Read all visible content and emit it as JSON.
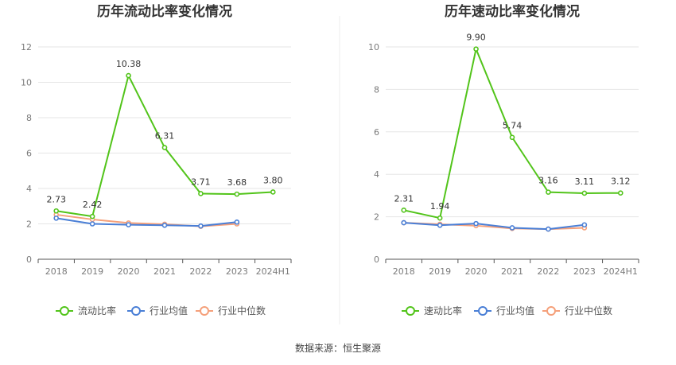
{
  "chart_data": [
    {
      "type": "line",
      "title": "历年流动比率变化情况",
      "categories": [
        "2018",
        "2019",
        "2020",
        "2021",
        "2022",
        "2023",
        "2024H1"
      ],
      "ylim": [
        0,
        12
      ],
      "yticks": [
        0,
        2,
        4,
        6,
        8,
        10,
        12
      ],
      "grid": true,
      "legend_position": "bottom",
      "series": [
        {
          "name": "流动比率",
          "color": "#52c41a",
          "values": [
            2.73,
            2.42,
            10.38,
            6.31,
            3.71,
            3.68,
            3.8
          ],
          "labels": [
            "2.73",
            "2.42",
            "10.38",
            "6.31",
            "3.71",
            "3.68",
            "3.80"
          ]
        },
        {
          "name": "行业均值",
          "color": "#4a7fd6",
          "values": [
            2.32,
            2.0,
            1.95,
            1.92,
            1.88,
            2.1,
            null
          ]
        },
        {
          "name": "行业中位数",
          "color": "#f5a07a",
          "values": [
            2.52,
            2.25,
            2.05,
            1.98,
            1.86,
            2.0,
            null
          ]
        }
      ]
    },
    {
      "type": "line",
      "title": "历年速动比率变化情况",
      "categories": [
        "2018",
        "2019",
        "2020",
        "2021",
        "2022",
        "2023",
        "2024H1"
      ],
      "ylim": [
        0,
        10
      ],
      "yticks": [
        0,
        2,
        4,
        6,
        8,
        10
      ],
      "grid": true,
      "legend_position": "bottom",
      "series": [
        {
          "name": "速动比率",
          "color": "#52c41a",
          "values": [
            2.31,
            1.94,
            9.9,
            5.74,
            3.16,
            3.11,
            3.12
          ],
          "labels": [
            "2.31",
            "1.94",
            "9.90",
            "5.74",
            "3.16",
            "3.11",
            "3.12"
          ]
        },
        {
          "name": "行业均值",
          "color": "#4a7fd6",
          "values": [
            1.72,
            1.6,
            1.68,
            1.48,
            1.42,
            1.62,
            null
          ]
        },
        {
          "name": "行业中位数",
          "color": "#f5a07a",
          "values": [
            1.72,
            1.65,
            1.58,
            1.45,
            1.42,
            1.48,
            null
          ]
        }
      ]
    }
  ],
  "footer": {
    "source": "数据来源：恒生聚源"
  }
}
